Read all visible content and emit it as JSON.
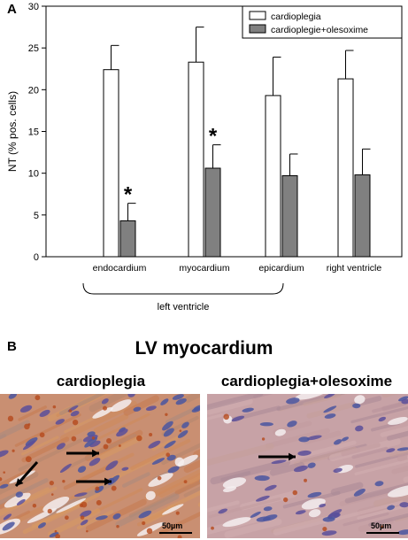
{
  "panel_a_label": "A",
  "panel_b_label": "B",
  "chart_data": {
    "type": "bar",
    "title": "",
    "ylabel": "NT (% pos. cells)",
    "xlabel": "",
    "ylim": [
      0,
      30
    ],
    "yticks": [
      0,
      5,
      10,
      15,
      20,
      25,
      30
    ],
    "categories": [
      "endocardium",
      "myocardium",
      "epicardium",
      "right ventricle"
    ],
    "group_bracket_label": "left ventricle",
    "legend_position": "top-right",
    "grid": false,
    "series": [
      {
        "name": "cardioplegia",
        "color": "#ffffff",
        "values": [
          22.4,
          23.3,
          19.3,
          21.3
        ],
        "errors": [
          2.9,
          4.2,
          4.6,
          3.4
        ]
      },
      {
        "name": "cardioplegie+olesoxime",
        "color": "#808080",
        "values": [
          4.3,
          10.6,
          9.7,
          9.8
        ],
        "errors": [
          2.1,
          2.8,
          2.6,
          3.1
        ]
      }
    ],
    "significance_marker": "*",
    "significant_categories": [
      "endocardium",
      "myocardium"
    ]
  },
  "panel_b": {
    "title": "LV myocardium",
    "left_title": "cardioplegia",
    "right_title": "cardioplegia+olesoxime",
    "scale_label": "50µm"
  }
}
